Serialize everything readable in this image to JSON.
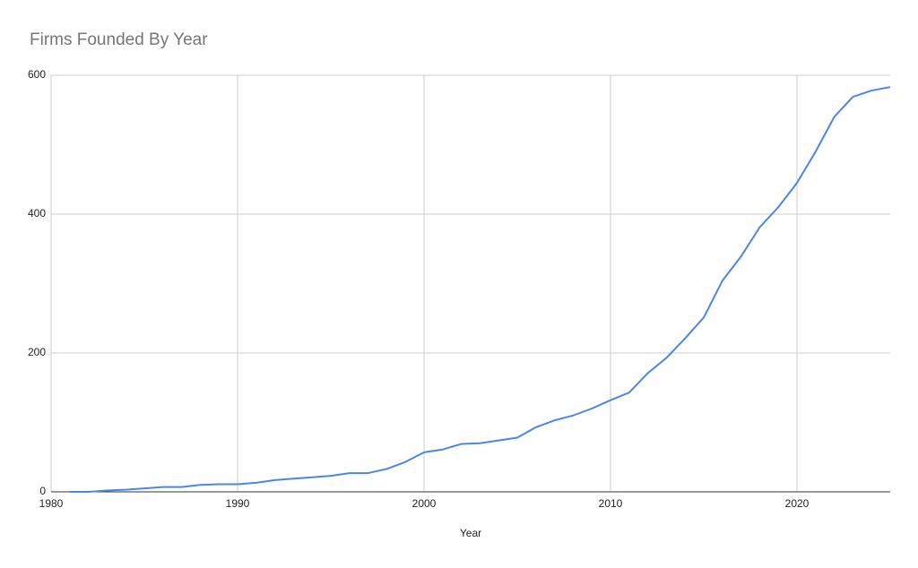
{
  "chart_data": {
    "type": "line",
    "title": "Firms Founded By Year",
    "x_label": "Year",
    "x": [
      1981,
      1982,
      1983,
      1984,
      1985,
      1986,
      1987,
      1988,
      1989,
      1990,
      1991,
      1992,
      1993,
      1994,
      1995,
      1996,
      1997,
      1998,
      1999,
      2000,
      2001,
      2002,
      2003,
      2004,
      2005,
      2006,
      2007,
      2008,
      2009,
      2010,
      2011,
      2012,
      2013,
      2014,
      2015,
      2016,
      2017,
      2018,
      2019,
      2020,
      2021,
      2022,
      2023,
      2024,
      2025
    ],
    "series": [
      {
        "color": "#4a86e8",
        "values": [
          0,
          0,
          2,
          3,
          5,
          7,
          7,
          10,
          11,
          11,
          13,
          17,
          19,
          21,
          23,
          27,
          27,
          33,
          43,
          57,
          61,
          69,
          70,
          74,
          78,
          93,
          103,
          110,
          120,
          132,
          143,
          171,
          193,
          221,
          251,
          304,
          339,
          381,
          410,
          445,
          490,
          540,
          569,
          578,
          583
        ]
      }
    ],
    "xlim": [
      1980,
      2025
    ],
    "xticks": [
      1980,
      1990,
      2000,
      2010,
      2020
    ],
    "ylim": [
      0,
      600
    ],
    "yticks": [
      0,
      200,
      400,
      600
    ],
    "grid": true
  }
}
